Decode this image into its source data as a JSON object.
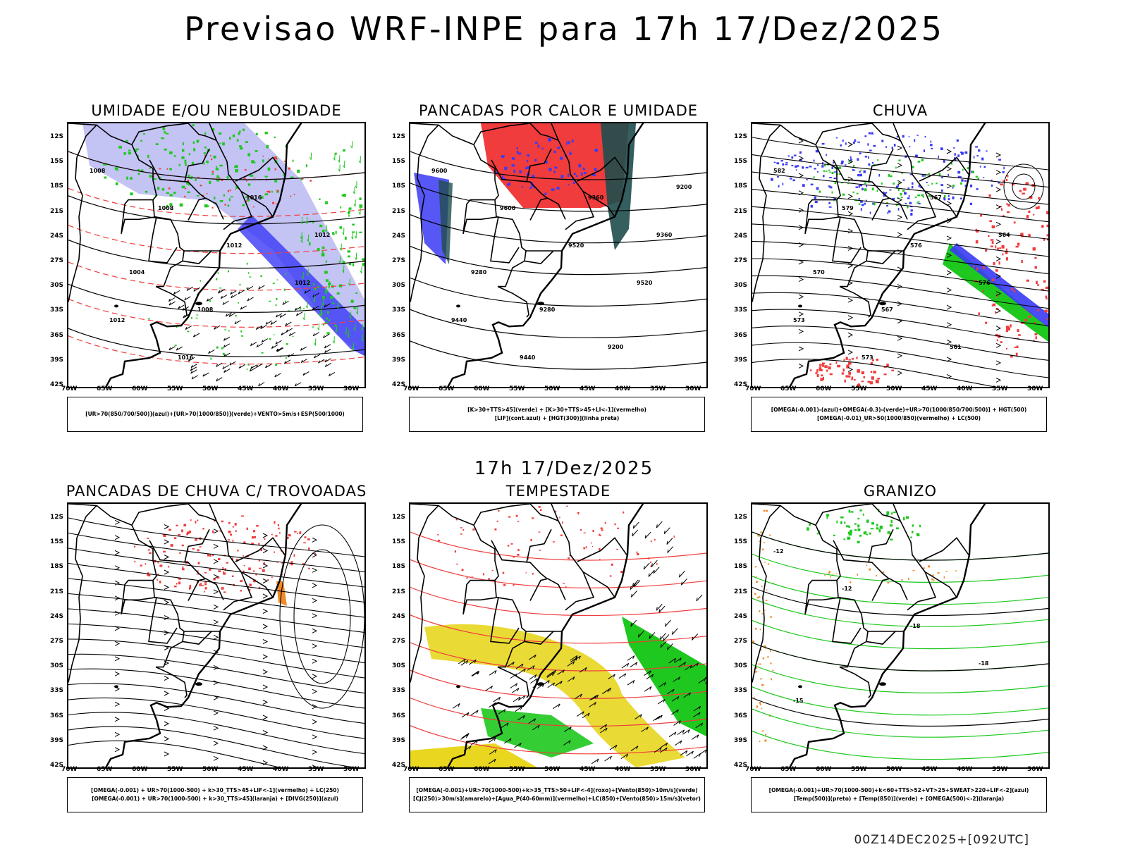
{
  "header": {
    "title": "Previsao WRF-INPE  para 17h 17/Dez/2025"
  },
  "middle": {
    "title": "17h 17/Dez/2025"
  },
  "footer": {
    "run": "00Z14DEC2025+[092UTC]"
  },
  "axes": {
    "lat_labels": [
      "12S",
      "15S",
      "18S",
      "21S",
      "24S",
      "27S",
      "30S",
      "33S",
      "36S",
      "39S",
      "42S"
    ],
    "lon_labels": [
      "70W",
      "65W",
      "60W",
      "55W",
      "50W",
      "45W",
      "40W",
      "35W",
      "30W"
    ]
  },
  "colors": {
    "blue": "#3a3af5",
    "lightblue": "#a9a9f0",
    "green": "#1ec81e",
    "red": "#f03c3c",
    "darkteal": "#1f4d4d",
    "yellow": "#e8d61f",
    "orange": "#f08a28"
  },
  "panels": [
    {
      "title": "UMIDADE E/OU NEBULOSIDADE",
      "legend": [
        "[UR>70(850/700/500)](azul)+[UR>70(1000/850)](verde)+VENTO>5m/s+ESP(500/1000)"
      ],
      "contour_labels": [
        "1008",
        "1008",
        "1012",
        "1012",
        "1012",
        "1016",
        "1016",
        "1012",
        "1004",
        "1008"
      ]
    },
    {
      "title": "PANCADAS POR CALOR E UMIDADE",
      "legend": [
        "[K>30+TTS>45](verde) + [K>30+TTS>45+LI<-1](vermelho)",
        "[LIF](cont.azul) + [HGT(300)](linha preta)"
      ],
      "contour_labels": [
        "9600",
        "9600",
        "9520",
        "9520",
        "9440",
        "9440",
        "9360",
        "9360",
        "9280",
        "9280",
        "9200",
        "9200"
      ]
    },
    {
      "title": "CHUVA",
      "legend": [
        "[OMEGA(-0.001)-(azul)+OMEGA(-0.3)-(verde)+UR>70(1000/850/700/500)] + HGT(500)",
        "[OMEGA(-0.01)_UR>50(1000/850)(vermelho) + LC(500)"
      ],
      "contour_labels": [
        "582",
        "579",
        "576",
        "576",
        "573",
        "573",
        "567",
        "564",
        "570",
        "567",
        "561"
      ]
    },
    {
      "title": "PANCADAS DE CHUVA C/ TROVOADAS",
      "legend": [
        "[OMEGA(-0.001) + UR>70(1000-500) + k>30_TTS>45+LIF<-1](vermelho) + LC(250)",
        "[OMEGA(-0.001) + UR>70(1000-500) + k>30_TTS>45](laranja) + [DIVG(250)](azul)"
      ],
      "contour_labels": []
    },
    {
      "title": "TEMPESTADE",
      "legend": [
        "[OMEGA(-0.001)+UR>70(1000-500)+k>35_TTS>50+LIF<-4](roxo)+[Vento(850)>10m/s](verde)",
        "[CJ(250)>30m/s](amarelo)+[Agua_P(40-60mm)](vermelho)+LC(850)+[Vento(850)>15m/s](vetor)"
      ],
      "contour_labels": []
    },
    {
      "title": "GRANIZO",
      "legend": [
        "[OMEGA(-0.001)+UR>70(1000-500)+k<60+TTS>52+VT>25+SWEAT>220+LIF<-2](azul)",
        "[Temp(500)](preto) + [Temp(850)](verde) + [OMEGA(500)<-2](laranja)"
      ],
      "contour_labels": [
        "-12",
        "-12",
        "-18",
        "-18",
        "-15"
      ]
    }
  ]
}
